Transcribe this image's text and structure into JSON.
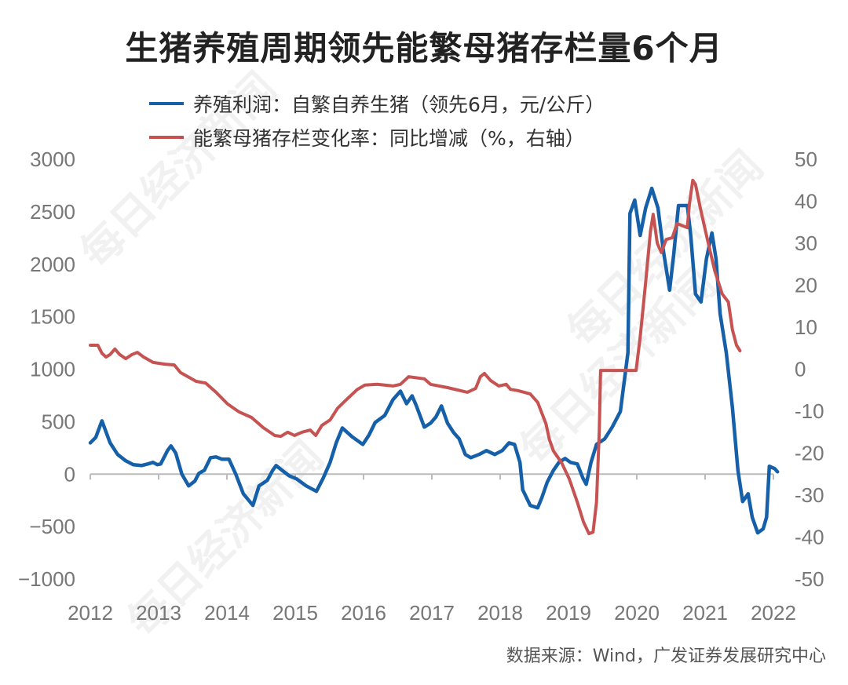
{
  "colors": {
    "profit": "#1560a8",
    "sows": "#c65252",
    "axis": "#bbbbbb",
    "tick_text": "#777777"
  },
  "chart_data": {
    "type": "line",
    "title": "生猪养殖周期领先能繁母猪存栏量6个月",
    "source": "数据来源：Wind，广发证券发展研究中心",
    "watermark": "每日经济新闻",
    "grid": false,
    "legend_placement": "top-left",
    "x_ticks": [
      "2012",
      "2013",
      "2014",
      "2015",
      "2016",
      "2017",
      "2018",
      "2019",
      "2020",
      "2021",
      "2022"
    ],
    "xlim": [
      2012,
      2022
    ],
    "y_left": {
      "lim": [
        -1000,
        3000
      ],
      "ticks": [
        "3000",
        "2500",
        "2000",
        "1500",
        "1000",
        "500",
        "0",
        "−500",
        "−1000"
      ]
    },
    "y_right": {
      "lim": [
        -50,
        50
      ],
      "ticks": [
        "50",
        "40",
        "30",
        "20",
        "10",
        "0",
        "-10",
        "-20",
        "-30",
        "-40",
        "-50"
      ]
    },
    "series": [
      {
        "name": "养殖利润：自繁自养生猪（领先6月，元/公斤）",
        "axis": "left",
        "points": [
          [
            2012.0,
            298
          ],
          [
            2012.08,
            351
          ],
          [
            2012.17,
            507
          ],
          [
            2012.29,
            298
          ],
          [
            2012.4,
            187
          ],
          [
            2012.52,
            127
          ],
          [
            2012.63,
            90
          ],
          [
            2012.75,
            82
          ],
          [
            2012.84,
            97
          ],
          [
            2012.92,
            112
          ],
          [
            2012.98,
            90
          ],
          [
            2013.03,
            97
          ],
          [
            2013.13,
            224
          ],
          [
            2013.18,
            269
          ],
          [
            2013.25,
            201
          ],
          [
            2013.34,
            0
          ],
          [
            2013.44,
            -112
          ],
          [
            2013.53,
            -67
          ],
          [
            2013.59,
            7
          ],
          [
            2013.67,
            37
          ],
          [
            2013.76,
            157
          ],
          [
            2013.84,
            164
          ],
          [
            2013.93,
            142
          ],
          [
            2014.03,
            142
          ],
          [
            2014.13,
            0
          ],
          [
            2014.24,
            -187
          ],
          [
            2014.38,
            -298
          ],
          [
            2014.47,
            -112
          ],
          [
            2014.59,
            -60
          ],
          [
            2014.67,
            37
          ],
          [
            2014.72,
            82
          ],
          [
            2014.82,
            30
          ],
          [
            2014.91,
            -15
          ],
          [
            2015.02,
            -45
          ],
          [
            2015.16,
            -112
          ],
          [
            2015.31,
            -164
          ],
          [
            2015.41,
            -37
          ],
          [
            2015.51,
            112
          ],
          [
            2015.6,
            298
          ],
          [
            2015.69,
            440
          ],
          [
            2015.83,
            358
          ],
          [
            2015.99,
            283
          ],
          [
            2016.08,
            373
          ],
          [
            2016.17,
            492
          ],
          [
            2016.31,
            560
          ],
          [
            2016.43,
            709
          ],
          [
            2016.54,
            791
          ],
          [
            2016.63,
            671
          ],
          [
            2016.71,
            746
          ],
          [
            2016.77,
            656
          ],
          [
            2016.89,
            448
          ],
          [
            2016.98,
            485
          ],
          [
            2017.06,
            545
          ],
          [
            2017.14,
            649
          ],
          [
            2017.23,
            485
          ],
          [
            2017.32,
            395
          ],
          [
            2017.4,
            336
          ],
          [
            2017.49,
            187
          ],
          [
            2017.57,
            157
          ],
          [
            2017.69,
            187
          ],
          [
            2017.8,
            224
          ],
          [
            2017.92,
            187
          ],
          [
            2018.03,
            224
          ],
          [
            2018.13,
            298
          ],
          [
            2018.21,
            283
          ],
          [
            2018.29,
            112
          ],
          [
            2018.33,
            -149
          ],
          [
            2018.44,
            -298
          ],
          [
            2018.55,
            -321
          ],
          [
            2018.61,
            -224
          ],
          [
            2018.69,
            -75
          ],
          [
            2018.78,
            37
          ],
          [
            2018.86,
            112
          ],
          [
            2018.95,
            149
          ],
          [
            2019.03,
            112
          ],
          [
            2019.13,
            97
          ],
          [
            2019.21,
            -37
          ],
          [
            2019.26,
            -97
          ],
          [
            2019.33,
            112
          ],
          [
            2019.41,
            283
          ],
          [
            2019.53,
            336
          ],
          [
            2019.64,
            448
          ],
          [
            2019.76,
            597
          ],
          [
            2019.87,
            1156
          ],
          [
            2019.9,
            2484
          ],
          [
            2019.97,
            2611
          ],
          [
            2020.05,
            2275
          ],
          [
            2020.13,
            2536
          ],
          [
            2020.22,
            2723
          ],
          [
            2020.31,
            2536
          ],
          [
            2020.39,
            2126
          ],
          [
            2020.48,
            1753
          ],
          [
            2020.54,
            2089
          ],
          [
            2020.61,
            2559
          ],
          [
            2020.74,
            2559
          ],
          [
            2020.79,
            2275
          ],
          [
            2020.86,
            1716
          ],
          [
            2020.94,
            1641
          ],
          [
            2021.02,
            2052
          ],
          [
            2021.1,
            2298
          ],
          [
            2021.16,
            2052
          ],
          [
            2021.22,
            1529
          ],
          [
            2021.31,
            1156
          ],
          [
            2021.4,
            634
          ],
          [
            2021.48,
            37
          ],
          [
            2021.55,
            -261
          ],
          [
            2021.63,
            -187
          ],
          [
            2021.69,
            -410
          ],
          [
            2021.77,
            -560
          ],
          [
            2021.85,
            -522
          ],
          [
            2021.9,
            -410
          ],
          [
            2021.94,
            75
          ],
          [
            2022.02,
            52
          ],
          [
            2022.06,
            22
          ]
        ]
      },
      {
        "name": "能繁母猪存栏变化率：同比增减（%，右轴）",
        "axis": "right",
        "points": [
          [
            2012.0,
            5.7
          ],
          [
            2012.11,
            5.7
          ],
          [
            2012.17,
            3.8
          ],
          [
            2012.23,
            2.9
          ],
          [
            2012.29,
            3.5
          ],
          [
            2012.36,
            4.8
          ],
          [
            2012.43,
            3.5
          ],
          [
            2012.52,
            2.5
          ],
          [
            2012.61,
            3.5
          ],
          [
            2012.69,
            4.0
          ],
          [
            2012.78,
            2.9
          ],
          [
            2012.92,
            1.6
          ],
          [
            2013.09,
            1.2
          ],
          [
            2013.23,
            1.0
          ],
          [
            2013.32,
            -0.8
          ],
          [
            2013.55,
            -2.9
          ],
          [
            2013.69,
            -3.3
          ],
          [
            2013.84,
            -5.5
          ],
          [
            2014.01,
            -8.3
          ],
          [
            2014.18,
            -10.2
          ],
          [
            2014.36,
            -11.5
          ],
          [
            2014.53,
            -13.9
          ],
          [
            2014.7,
            -15.8
          ],
          [
            2014.79,
            -16.0
          ],
          [
            2014.89,
            -15.0
          ],
          [
            2014.99,
            -15.8
          ],
          [
            2015.1,
            -15.0
          ],
          [
            2015.22,
            -14.5
          ],
          [
            2015.3,
            -15.8
          ],
          [
            2015.39,
            -13.4
          ],
          [
            2015.51,
            -12.1
          ],
          [
            2015.62,
            -9.3
          ],
          [
            2015.74,
            -7.4
          ],
          [
            2015.91,
            -4.8
          ],
          [
            2016.02,
            -3.8
          ],
          [
            2016.2,
            -3.6
          ],
          [
            2016.43,
            -4.0
          ],
          [
            2016.54,
            -3.6
          ],
          [
            2016.66,
            -1.8
          ],
          [
            2016.89,
            -2.3
          ],
          [
            2016.98,
            -3.6
          ],
          [
            2017.23,
            -4.4
          ],
          [
            2017.52,
            -5.5
          ],
          [
            2017.64,
            -4.6
          ],
          [
            2017.71,
            -1.8
          ],
          [
            2017.77,
            -1.0
          ],
          [
            2017.86,
            -2.7
          ],
          [
            2017.98,
            -4.0
          ],
          [
            2018.09,
            -3.6
          ],
          [
            2018.15,
            -4.8
          ],
          [
            2018.26,
            -5.1
          ],
          [
            2018.44,
            -5.9
          ],
          [
            2018.55,
            -7.9
          ],
          [
            2018.67,
            -13.0
          ],
          [
            2018.72,
            -16.7
          ],
          [
            2018.78,
            -19.5
          ],
          [
            2018.9,
            -22.3
          ],
          [
            2019.01,
            -26.1
          ],
          [
            2019.13,
            -31.7
          ],
          [
            2019.22,
            -36.4
          ],
          [
            2019.3,
            -39.2
          ],
          [
            2019.36,
            -38.8
          ],
          [
            2019.41,
            -31.7
          ],
          [
            2019.45,
            -14.9
          ],
          [
            2019.47,
            -0.3
          ],
          [
            2019.99,
            -0.3
          ],
          [
            2020.05,
            7.6
          ],
          [
            2020.13,
            20.7
          ],
          [
            2020.2,
            32.8
          ],
          [
            2020.24,
            36.9
          ],
          [
            2020.3,
            30.0
          ],
          [
            2020.36,
            27.8
          ],
          [
            2020.43,
            30.9
          ],
          [
            2020.52,
            31.3
          ],
          [
            2020.59,
            34.7
          ],
          [
            2020.74,
            33.7
          ],
          [
            2020.77,
            39.3
          ],
          [
            2020.82,
            45.0
          ],
          [
            2020.86,
            44.0
          ],
          [
            2020.93,
            38.4
          ],
          [
            2021.02,
            31.9
          ],
          [
            2021.14,
            23.5
          ],
          [
            2021.25,
            17.9
          ],
          [
            2021.34,
            16.0
          ],
          [
            2021.4,
            9.4
          ],
          [
            2021.46,
            5.7
          ],
          [
            2021.51,
            4.4
          ]
        ]
      }
    ]
  }
}
